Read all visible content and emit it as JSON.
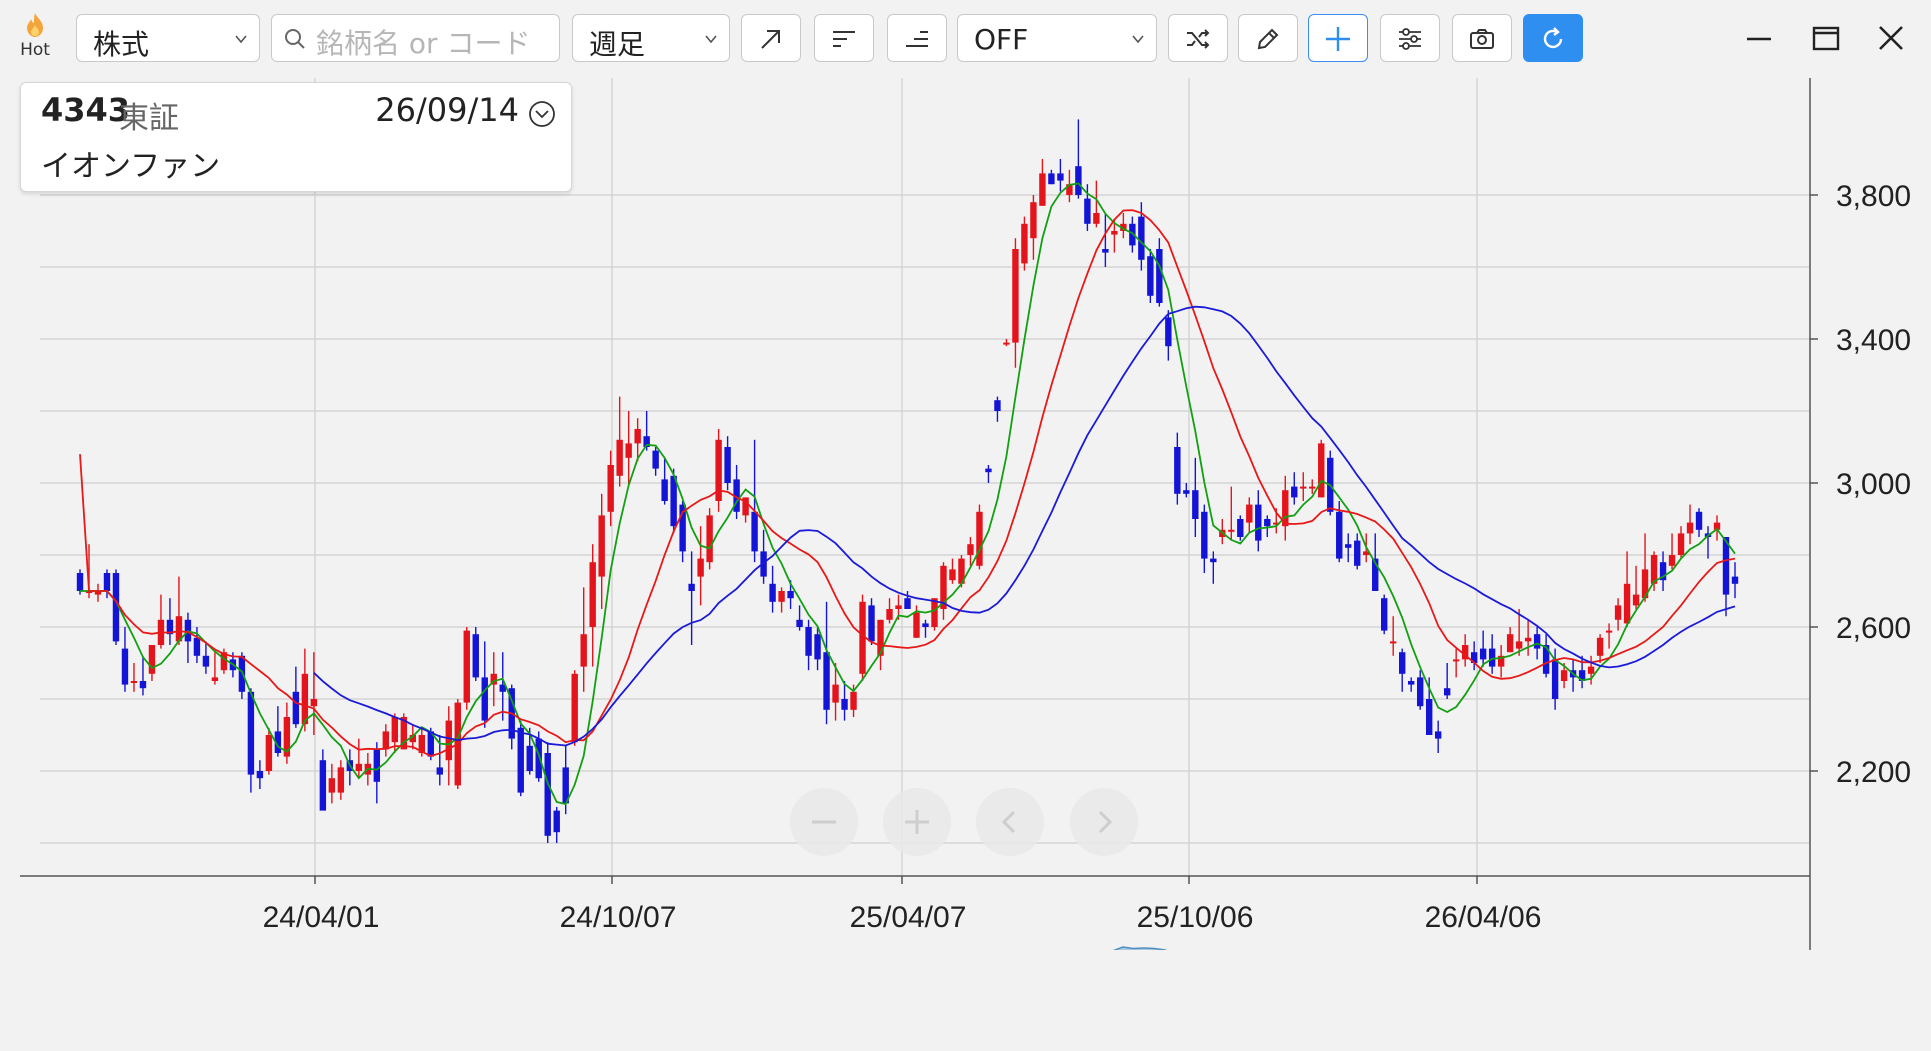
{
  "toolbar": {
    "hot_label": "Hot",
    "type_select": "株式",
    "search_placeholder": "銘柄名 or コード",
    "period_select": "週足",
    "indicator_select": "OFF"
  },
  "info_card": {
    "code": "4343",
    "exchange": "東証",
    "date": "26/09/14",
    "name": "イオンファン"
  },
  "chart_data": {
    "type": "candlestick",
    "y_axis": {
      "ticks": [
        2200,
        2600,
        3000,
        3400,
        3800
      ],
      "labels": [
        "2,200",
        "2,600",
        "3,000",
        "3,400",
        "3,800"
      ],
      "range": [
        1980,
        4000
      ]
    },
    "x_axis": {
      "labels": [
        "24/04/01",
        "24/10/07",
        "25/04/07",
        "25/10/06",
        "26/04/06"
      ]
    },
    "candles": [
      [
        2750,
        2760,
        2690,
        2700
      ],
      [
        2700,
        2830,
        2680,
        2700
      ],
      [
        2690,
        2720,
        2670,
        2700
      ],
      [
        2750,
        2760,
        2680,
        2700
      ],
      [
        2750,
        2760,
        2550,
        2560
      ],
      [
        2540,
        2600,
        2420,
        2440
      ],
      [
        2450,
        2500,
        2420,
        2450
      ],
      [
        2450,
        2520,
        2410,
        2430
      ],
      [
        2470,
        2550,
        2450,
        2550
      ],
      [
        2550,
        2690,
        2540,
        2620
      ],
      [
        2620,
        2680,
        2550,
        2580
      ],
      [
        2560,
        2740,
        2550,
        2630
      ],
      [
        2620,
        2640,
        2500,
        2560
      ],
      [
        2570,
        2600,
        2500,
        2520
      ],
      [
        2520,
        2560,
        2470,
        2490
      ],
      [
        2450,
        2530,
        2440,
        2460
      ],
      [
        2480,
        2540,
        2470,
        2530
      ],
      [
        2510,
        2530,
        2460,
        2480
      ],
      [
        2520,
        2530,
        2400,
        2420
      ],
      [
        2420,
        2430,
        2140,
        2190
      ],
      [
        2200,
        2230,
        2150,
        2180
      ],
      [
        2200,
        2320,
        2190,
        2300
      ],
      [
        2310,
        2380,
        2240,
        2250
      ],
      [
        2240,
        2390,
        2220,
        2350
      ],
      [
        2420,
        2490,
        2320,
        2330
      ],
      [
        2330,
        2540,
        2310,
        2470
      ],
      [
        2380,
        2530,
        2300,
        2400
      ],
      [
        2230,
        2260,
        2110,
        2090
      ],
      [
        2140,
        2220,
        2110,
        2180
      ],
      [
        2140,
        2230,
        2120,
        2210
      ],
      [
        2230,
        2260,
        2160,
        2200
      ],
      [
        2200,
        2290,
        2180,
        2220
      ],
      [
        2190,
        2250,
        2160,
        2220
      ],
      [
        2260,
        2280,
        2110,
        2170
      ],
      [
        2260,
        2330,
        2240,
        2310
      ],
      [
        2280,
        2360,
        2250,
        2350
      ],
      [
        2260,
        2360,
        2260,
        2350
      ],
      [
        2280,
        2330,
        2260,
        2300
      ],
      [
        2250,
        2320,
        2240,
        2300
      ],
      [
        2310,
        2320,
        2230,
        2240
      ],
      [
        2210,
        2300,
        2160,
        2190
      ],
      [
        2230,
        2380,
        2160,
        2340
      ],
      [
        2160,
        2400,
        2150,
        2390
      ],
      [
        2390,
        2600,
        2370,
        2590
      ],
      [
        2580,
        2600,
        2450,
        2460
      ],
      [
        2460,
        2560,
        2320,
        2340
      ],
      [
        2440,
        2530,
        2380,
        2470
      ],
      [
        2440,
        2530,
        2340,
        2420
      ],
      [
        2430,
        2440,
        2260,
        2290
      ],
      [
        2320,
        2340,
        2130,
        2140
      ],
      [
        2270,
        2320,
        2190,
        2200
      ],
      [
        2290,
        2310,
        2170,
        2180
      ],
      [
        2250,
        2280,
        2000,
        2020
      ],
      [
        2090,
        2100,
        2000,
        2030
      ],
      [
        2210,
        2270,
        2080,
        2110
      ],
      [
        2280,
        2480,
        2270,
        2470
      ],
      [
        2490,
        2710,
        2420,
        2580
      ],
      [
        2600,
        2830,
        2490,
        2780
      ],
      [
        2740,
        2970,
        2650,
        2910
      ],
      [
        2920,
        3090,
        2880,
        3050
      ],
      [
        3020,
        3240,
        2990,
        3120
      ],
      [
        3070,
        3200,
        2990,
        3110
      ],
      [
        3110,
        3180,
        3060,
        3150
      ],
      [
        3130,
        3200,
        3090,
        3100
      ],
      [
        3090,
        3100,
        3020,
        3040
      ],
      [
        3010,
        3070,
        2940,
        2950
      ],
      [
        3020,
        3040,
        2860,
        2880
      ],
      [
        2940,
        2950,
        2780,
        2810
      ],
      [
        2720,
        2810,
        2550,
        2700
      ],
      [
        2740,
        2880,
        2660,
        2790
      ],
      [
        2780,
        2930,
        2760,
        2910
      ],
      [
        2950,
        3150,
        2920,
        3120
      ],
      [
        3100,
        3130,
        2980,
        3000
      ],
      [
        3010,
        3050,
        2900,
        2920
      ],
      [
        2910,
        2960,
        2890,
        2960
      ],
      [
        2920,
        3120,
        2780,
        2810
      ],
      [
        2810,
        2870,
        2720,
        2740
      ],
      [
        2720,
        2770,
        2640,
        2670
      ],
      [
        2670,
        2710,
        2640,
        2700
      ],
      [
        2700,
        2730,
        2650,
        2680
      ],
      [
        2620,
        2660,
        2590,
        2600
      ],
      [
        2600,
        2620,
        2480,
        2520
      ],
      [
        2580,
        2600,
        2480,
        2510
      ],
      [
        2530,
        2670,
        2330,
        2370
      ],
      [
        2390,
        2500,
        2340,
        2440
      ],
      [
        2400,
        2450,
        2340,
        2370
      ],
      [
        2370,
        2440,
        2350,
        2420
      ],
      [
        2470,
        2690,
        2450,
        2670
      ],
      [
        2660,
        2680,
        2550,
        2560
      ],
      [
        2520,
        2620,
        2480,
        2620
      ],
      [
        2620,
        2680,
        2610,
        2650
      ],
      [
        2650,
        2690,
        2620,
        2660
      ],
      [
        2680,
        2700,
        2650,
        2650
      ],
      [
        2570,
        2660,
        2570,
        2640
      ],
      [
        2610,
        2620,
        2570,
        2600
      ],
      [
        2600,
        2680,
        2590,
        2680
      ],
      [
        2650,
        2780,
        2620,
        2770
      ],
      [
        2730,
        2790,
        2720,
        2760
      ],
      [
        2720,
        2800,
        2710,
        2790
      ],
      [
        2800,
        2850,
        2770,
        2830
      ],
      [
        2770,
        2940,
        2760,
        2920
      ],
      [
        3040,
        3050,
        3000,
        3030
      ],
      [
        3230,
        3240,
        3170,
        3200
      ],
      [
        3390,
        3400,
        3380,
        3390
      ],
      [
        3390,
        3680,
        3320,
        3650
      ],
      [
        3610,
        3740,
        3590,
        3720
      ],
      [
        3680,
        3800,
        3620,
        3780
      ],
      [
        3770,
        3900,
        3770,
        3860
      ],
      [
        3860,
        3870,
        3830,
        3830
      ],
      [
        3860,
        3900,
        3810,
        3840
      ],
      [
        3800,
        3870,
        3780,
        3830
      ],
      [
        3880,
        4010,
        3790,
        3800
      ],
      [
        3790,
        3830,
        3700,
        3720
      ],
      [
        3720,
        3840,
        3710,
        3750
      ],
      [
        3650,
        3750,
        3600,
        3640
      ],
      [
        3690,
        3730,
        3640,
        3700
      ],
      [
        3700,
        3750,
        3680,
        3720
      ],
      [
        3720,
        3740,
        3640,
        3660
      ],
      [
        3740,
        3780,
        3590,
        3620
      ],
      [
        3630,
        3650,
        3500,
        3520
      ],
      [
        3650,
        3680,
        3490,
        3500
      ],
      [
        3460,
        3480,
        3340,
        3380
      ],
      [
        3100,
        3140,
        2940,
        2970
      ],
      [
        2980,
        3000,
        2960,
        2970
      ],
      [
        2980,
        3070,
        2850,
        2900
      ],
      [
        2920,
        2940,
        2750,
        2790
      ],
      [
        2790,
        2810,
        2720,
        2780
      ],
      [
        2850,
        2900,
        2830,
        2870
      ],
      [
        2870,
        2990,
        2840,
        2870
      ],
      [
        2900,
        2910,
        2840,
        2850
      ],
      [
        2890,
        2960,
        2860,
        2940
      ],
      [
        2940,
        2980,
        2810,
        2840
      ],
      [
        2900,
        2910,
        2850,
        2880
      ],
      [
        2890,
        2930,
        2860,
        2890
      ],
      [
        2880,
        3020,
        2840,
        2980
      ],
      [
        2990,
        3030,
        2940,
        2960
      ],
      [
        2990,
        3030,
        2950,
        2990
      ],
      [
        2990,
        3010,
        2970,
        2990
      ],
      [
        2960,
        3120,
        2960,
        3110
      ],
      [
        3070,
        3090,
        2910,
        2920
      ],
      [
        2920,
        2950,
        2780,
        2790
      ],
      [
        2830,
        2860,
        2780,
        2820
      ],
      [
        2840,
        2860,
        2760,
        2770
      ],
      [
        2800,
        2860,
        2780,
        2810
      ],
      [
        2790,
        2860,
        2700,
        2700
      ],
      [
        2680,
        2690,
        2580,
        2590
      ],
      [
        2560,
        2630,
        2520,
        2560
      ],
      [
        2530,
        2540,
        2420,
        2470
      ],
      [
        2450,
        2460,
        2420,
        2440
      ],
      [
        2460,
        2480,
        2370,
        2380
      ],
      [
        2400,
        2460,
        2300,
        2300
      ],
      [
        2310,
        2340,
        2250,
        2290
      ],
      [
        2430,
        2500,
        2400,
        2410
      ],
      [
        2510,
        2540,
        2460,
        2510
      ],
      [
        2510,
        2580,
        2490,
        2550
      ],
      [
        2530,
        2560,
        2480,
        2500
      ],
      [
        2540,
        2590,
        2490,
        2510
      ],
      [
        2540,
        2580,
        2470,
        2490
      ],
      [
        2490,
        2550,
        2460,
        2520
      ],
      [
        2530,
        2600,
        2530,
        2580
      ],
      [
        2540,
        2650,
        2520,
        2560
      ],
      [
        2560,
        2620,
        2520,
        2570
      ],
      [
        2580,
        2600,
        2510,
        2540
      ],
      [
        2550,
        2580,
        2460,
        2470
      ],
      [
        2510,
        2540,
        2370,
        2400
      ],
      [
        2450,
        2500,
        2430,
        2480
      ],
      [
        2480,
        2510,
        2420,
        2460
      ],
      [
        2480,
        2520,
        2430,
        2450
      ],
      [
        2470,
        2520,
        2440,
        2490
      ],
      [
        2520,
        2580,
        2500,
        2570
      ],
      [
        2590,
        2610,
        2540,
        2590
      ],
      [
        2620,
        2680,
        2590,
        2660
      ],
      [
        2610,
        2810,
        2600,
        2720
      ],
      [
        2660,
        2770,
        2650,
        2690
      ],
      [
        2680,
        2860,
        2670,
        2760
      ],
      [
        2720,
        2810,
        2700,
        2800
      ],
      [
        2780,
        2810,
        2700,
        2730
      ],
      [
        2770,
        2860,
        2760,
        2800
      ],
      [
        2800,
        2880,
        2790,
        2860
      ],
      [
        2860,
        2940,
        2830,
        2890
      ],
      [
        2920,
        2930,
        2850,
        2870
      ],
      [
        2860,
        2880,
        2790,
        2850
      ],
      [
        2870,
        2910,
        2840,
        2890
      ],
      [
        2850,
        2850,
        2630,
        2690
      ],
      [
        2740,
        2780,
        2680,
        2720
      ]
    ]
  }
}
